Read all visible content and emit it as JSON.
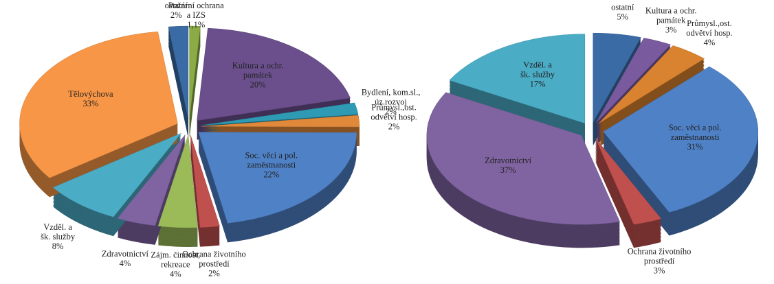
{
  "chart_data": [
    {
      "type": "pie",
      "categories": [
        [
          "Požární ochrana",
          "a IZS"
        ],
        [
          "Kultura a ochr.",
          "památek"
        ],
        [
          "Bydlení, kom.sl.,",
          "úz.rozvoj"
        ],
        [
          "Průmysl.,ost.",
          "odvětví hosp."
        ],
        [
          "Soc. věci a pol.",
          "zaměstnanosti"
        ],
        [
          "Ochrana životního",
          "prostředí"
        ],
        [
          "Zájm. činnost,",
          "rekreace"
        ],
        [
          "Zdravotnictví"
        ],
        [
          "Vzděl. a",
          "šk. služby"
        ],
        [
          "Tělovýchova"
        ],
        [
          "ostatní"
        ]
      ],
      "values": [
        1.1,
        20,
        2,
        2,
        22,
        2,
        4,
        4,
        8,
        33,
        2
      ],
      "value_labels": [
        "1,1%",
        "20%",
        "2%",
        "2%",
        "22%",
        "2%",
        "4%",
        "4%",
        "8%",
        "33%",
        "2%"
      ],
      "colors": [
        "#8aab45",
        "#6a4f8c",
        "#2e9ab3",
        "#e0893a",
        "#4f81c6",
        "#c0504d",
        "#9bbb59",
        "#8064a2",
        "#4bacc6",
        "#f79646",
        "#3b6ba5"
      ]
    },
    {
      "type": "pie",
      "categories": [
        [
          "ostatní"
        ],
        [
          "Kultura a ochr.",
          "památek"
        ],
        [
          "Průmysl.,ost.",
          "odvětví hosp."
        ],
        [
          "Soc. věci a pol.",
          "zaměstnanosti"
        ],
        [
          "Ochrana životního",
          "prostředí"
        ],
        [
          "Zdravotnictví"
        ],
        [
          "Vzděl. a",
          "šk. služby"
        ]
      ],
      "values": [
        5,
        3,
        4,
        31,
        3,
        37,
        17
      ],
      "value_labels": [
        "5%",
        "3%",
        "4%",
        "31%",
        "3%",
        "37%",
        "17%"
      ],
      "colors": [
        "#3b6ba5",
        "#7a5a9e",
        "#d9822f",
        "#4f81c6",
        "#c0504d",
        "#8064a2",
        "#4bacc6"
      ]
    }
  ]
}
